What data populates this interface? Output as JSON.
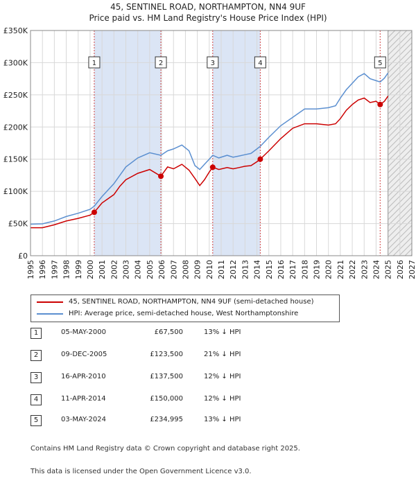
{
  "title": {
    "line1": "45, SENTINEL ROAD, NORTHAMPTON, NN4 9UF",
    "line2": "Price paid vs. HM Land Registry's House Price Index (HPI)"
  },
  "colors": {
    "price_line": "#cc0000",
    "hpi_line": "#5b8fd0",
    "shade": "#dbe5f5",
    "marker_line": "#d04040"
  },
  "chart_data": {
    "type": "line",
    "title": "Price paid vs. HM Land Registry's House Price Index (HPI)",
    "xlabel": "",
    "ylabel": "",
    "xlim": [
      1995,
      2027
    ],
    "ylim": [
      0,
      350000
    ],
    "yticks": [
      0,
      50000,
      100000,
      150000,
      200000,
      250000,
      300000,
      350000
    ],
    "ytick_labels": [
      "£0",
      "£50K",
      "£100K",
      "£150K",
      "£200K",
      "£250K",
      "£300K",
      "£350K"
    ],
    "xticks": [
      "1995",
      "1996",
      "1997",
      "1998",
      "1999",
      "2000",
      "2001",
      "2002",
      "2003",
      "2004",
      "2005",
      "2006",
      "2007",
      "2008",
      "2009",
      "2010",
      "2011",
      "2012",
      "2013",
      "2014",
      "2015",
      "2016",
      "2017",
      "2018",
      "2019",
      "2020",
      "2021",
      "2022",
      "2023",
      "2024",
      "2025",
      "2026",
      "2027"
    ],
    "forecast_from": 2025.0,
    "grid": true,
    "shaded_ranges": [
      [
        2000.35,
        2005.94
      ],
      [
        2010.29,
        2014.28
      ]
    ],
    "series": [
      {
        "name": "45, SENTINEL ROAD, NORTHAMPTON, NN4 9UF (semi-detached house)",
        "x": [
          1995.0,
          1996.0,
          1997.0,
          1998.0,
          1999.0,
          2000.0,
          2000.35,
          2001.0,
          2002.0,
          2002.5,
          2003.0,
          2004.0,
          2005.0,
          2005.94,
          2006.5,
          2007.0,
          2007.7,
          2008.3,
          2008.8,
          2009.2,
          2009.6,
          2010.0,
          2010.29,
          2010.8,
          2011.5,
          2012.0,
          2012.5,
          2013.0,
          2013.5,
          2014.0,
          2014.28,
          2015.0,
          2016.0,
          2017.0,
          2018.0,
          2019.0,
          2020.0,
          2020.6,
          2021.0,
          2021.5,
          2022.0,
          2022.5,
          2023.0,
          2023.5,
          2024.0,
          2024.34,
          2024.7,
          2025.0
        ],
        "values": [
          43500,
          43500,
          48000,
          54000,
          58000,
          63000,
          67500,
          82000,
          95000,
          108000,
          118000,
          128000,
          134000,
          123500,
          138000,
          135000,
          142000,
          133000,
          120000,
          109000,
          118000,
          130000,
          137500,
          134000,
          137000,
          135000,
          137000,
          139000,
          140000,
          146000,
          150000,
          163000,
          182000,
          198000,
          205000,
          205000,
          203000,
          205000,
          213000,
          226000,
          235000,
          242000,
          245000,
          238000,
          240000,
          234995,
          240000,
          248000
        ]
      },
      {
        "name": "HPI: Average price, semi-detached house, West Northamptonshire",
        "x": [
          1995.0,
          1996.0,
          1997.0,
          1998.0,
          1999.0,
          2000.0,
          2000.35,
          2001.0,
          2002.0,
          2002.5,
          2003.0,
          2004.0,
          2005.0,
          2005.94,
          2006.5,
          2007.0,
          2007.7,
          2008.3,
          2008.8,
          2009.2,
          2009.6,
          2010.0,
          2010.29,
          2010.8,
          2011.5,
          2012.0,
          2012.5,
          2013.0,
          2013.5,
          2014.0,
          2014.28,
          2015.0,
          2016.0,
          2017.0,
          2018.0,
          2019.0,
          2020.0,
          2020.6,
          2021.0,
          2021.5,
          2022.0,
          2022.5,
          2023.0,
          2023.5,
          2024.0,
          2024.34,
          2024.7,
          2025.0
        ],
        "values": [
          49000,
          49500,
          54000,
          61000,
          66000,
          72000,
          77000,
          92000,
          112000,
          125000,
          138000,
          152000,
          160000,
          156000,
          163000,
          166000,
          172000,
          163000,
          140000,
          134000,
          142000,
          150000,
          156000,
          152000,
          156000,
          153000,
          155000,
          157000,
          159000,
          166000,
          170000,
          184000,
          202000,
          215000,
          228000,
          228000,
          230000,
          233000,
          245000,
          258000,
          268000,
          278000,
          283000,
          275000,
          272000,
          270000,
          276000,
          284000
        ]
      }
    ],
    "sales": [
      {
        "n": "1",
        "x": 2000.35,
        "y": 67500
      },
      {
        "n": "2",
        "x": 2005.94,
        "y": 123500
      },
      {
        "n": "3",
        "x": 2010.29,
        "y": 137500
      },
      {
        "n": "4",
        "x": 2014.28,
        "y": 150000
      },
      {
        "n": "5",
        "x": 2024.34,
        "y": 234995
      }
    ]
  },
  "legend": [
    {
      "label": "45, SENTINEL ROAD, NORTHAMPTON, NN4 9UF (semi-detached house)",
      "color": "#cc0000"
    },
    {
      "label": "HPI: Average price, semi-detached house, West Northamptonshire",
      "color": "#5b8fd0"
    }
  ],
  "sales_table": [
    {
      "num": "1",
      "date": "05-MAY-2000",
      "price": "£67,500",
      "hpi": "13% ↓ HPI"
    },
    {
      "num": "2",
      "date": "09-DEC-2005",
      "price": "£123,500",
      "hpi": "21% ↓ HPI"
    },
    {
      "num": "3",
      "date": "16-APR-2010",
      "price": "£137,500",
      "hpi": "12% ↓ HPI"
    },
    {
      "num": "4",
      "date": "11-APR-2014",
      "price": "£150,000",
      "hpi": "12% ↓ HPI"
    },
    {
      "num": "5",
      "date": "03-MAY-2024",
      "price": "£234,995",
      "hpi": "13% ↓ HPI"
    }
  ],
  "footer": {
    "line1": "Contains HM Land Registry data © Crown copyright and database right 2025.",
    "line2": "This data is licensed under the Open Government Licence v3.0."
  }
}
